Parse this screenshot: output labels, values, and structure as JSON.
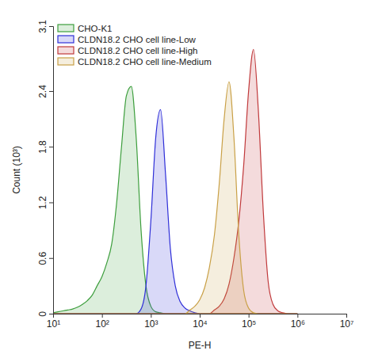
{
  "chart_data": {
    "type": "area",
    "x_label": "PE-H",
    "y_label": "Count (10³)",
    "log": "x",
    "legend": "top-left",
    "xlim": [
      10,
      10000000
    ],
    "xticks": [
      {
        "value": 10,
        "label": "10¹"
      },
      {
        "value": 100,
        "label": "10²"
      },
      {
        "value": 1000,
        "label": "10³"
      },
      {
        "value": 10000,
        "label": "10⁴"
      },
      {
        "value": 100000,
        "label": "10⁵"
      },
      {
        "value": 1000000,
        "label": "10⁶"
      },
      {
        "value": 10000000,
        "label": "10⁷"
      }
    ],
    "ylim": [
      0,
      3.1
    ],
    "yticks": [
      0,
      0.6,
      1.2,
      1.8,
      2.4,
      3.1
    ],
    "x": [
      10,
      12.6,
      15.8,
      20,
      25.1,
      31.6,
      39.8,
      50.1,
      63.1,
      79.4,
      100,
      126,
      158,
      200,
      251,
      316,
      398,
      501,
      631,
      794,
      1000,
      1260,
      1580,
      2000,
      2510,
      3160,
      3980,
      5010,
      6310,
      7940,
      10000,
      12600,
      15800,
      20000,
      25100,
      31600,
      39800,
      50100,
      63100,
      79400,
      100000,
      126000,
      158000,
      200000,
      251000,
      316000,
      398000,
      501000,
      631000,
      794000,
      1000000
    ],
    "series": [
      {
        "name": "CHO-K1",
        "color": "#3d9e3d",
        "values": [
          0.01,
          0.02,
          0.03,
          0.04,
          0.05,
          0.07,
          0.1,
          0.14,
          0.2,
          0.3,
          0.4,
          0.55,
          0.75,
          1.2,
          1.8,
          2.35,
          2.45,
          1.9,
          0.9,
          0.3,
          0.08,
          0.02,
          0.01,
          0,
          0,
          0,
          0,
          0,
          0,
          0,
          0,
          0,
          0,
          0,
          0,
          0,
          0,
          0,
          0,
          0,
          0,
          0,
          0,
          0,
          0,
          0,
          0,
          0,
          0,
          0,
          0
        ]
      },
      {
        "name": "CLDN18.2 CHO cell line-Low",
        "color": "#2f2fd8",
        "values": [
          0,
          0,
          0,
          0,
          0,
          0,
          0,
          0,
          0,
          0,
          0,
          0,
          0,
          0,
          0,
          0,
          0,
          0,
          0.05,
          0.3,
          1.0,
          1.9,
          2.2,
          1.5,
          0.7,
          0.3,
          0.13,
          0.06,
          0.03,
          0.01,
          0,
          0,
          0,
          0,
          0,
          0,
          0,
          0,
          0,
          0,
          0,
          0,
          0,
          0,
          0,
          0,
          0,
          0,
          0,
          0,
          0
        ]
      },
      {
        "name": "CLDN18.2 CHO cell line-High",
        "color": "#c0393b",
        "values": [
          0,
          0,
          0,
          0,
          0,
          0,
          0,
          0,
          0,
          0,
          0,
          0,
          0,
          0,
          0,
          0,
          0,
          0,
          0,
          0,
          0,
          0,
          0,
          0,
          0,
          0,
          0,
          0,
          0,
          0,
          0,
          0,
          0,
          0.04,
          0.08,
          0.16,
          0.32,
          0.6,
          1.0,
          1.6,
          2.4,
          2.85,
          2.2,
          1.1,
          0.35,
          0.1,
          0.03,
          0.01,
          0,
          0,
          0
        ]
      },
      {
        "name": "CLDN18.2 CHO cell line-Medium",
        "color": "#c9a046",
        "values": [
          0,
          0,
          0,
          0,
          0,
          0,
          0,
          0,
          0,
          0,
          0,
          0,
          0,
          0,
          0,
          0,
          0,
          0,
          0,
          0,
          0,
          0,
          0,
          0,
          0,
          0,
          0,
          0,
          0.04,
          0.08,
          0.15,
          0.28,
          0.5,
          0.85,
          1.4,
          2.1,
          2.5,
          1.9,
          0.85,
          0.25,
          0.06,
          0.01,
          0,
          0,
          0,
          0,
          0,
          0,
          0,
          0,
          0
        ]
      }
    ]
  }
}
